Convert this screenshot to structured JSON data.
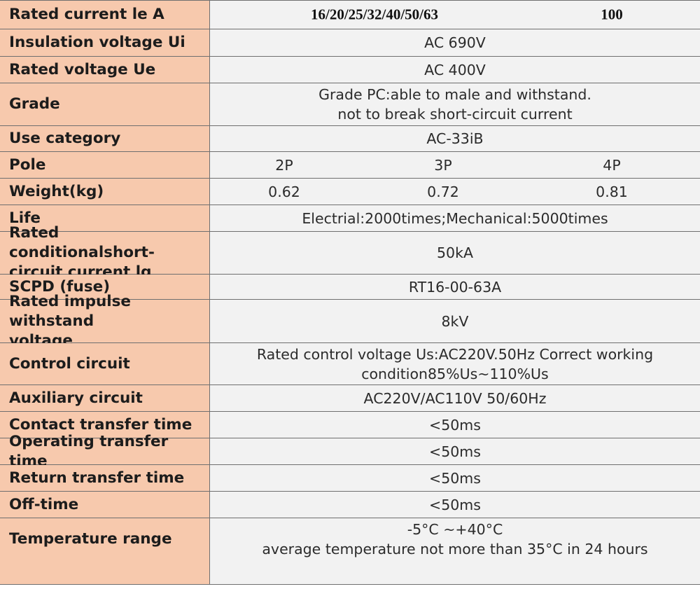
{
  "rated_current": {
    "label": "Rated current le A",
    "range_a": "16/20/25/32/40/50/63",
    "range_b": "100"
  },
  "insulation_voltage": {
    "label": "Insulation voltage Ui",
    "value": "AC 690V"
  },
  "rated_voltage": {
    "label": "Rated voltage Ue",
    "value": "AC 400V"
  },
  "grade": {
    "label": "Grade",
    "line1": "Grade PC:able to male and withstand.",
    "line2": "not to break short-circuit current"
  },
  "use_category": {
    "label": "Use category",
    "value": "AC-33iB"
  },
  "pole": {
    "label": "Pole",
    "p2": "2P",
    "p3": "3P",
    "p4": "4P"
  },
  "weight": {
    "label": "Weight(kg)",
    "w2": "0.62",
    "w3": "0.72",
    "w4": "0.81"
  },
  "life": {
    "label": "Life",
    "value": "Electrial:2000times;Mechanical:5000times"
  },
  "short_circuit": {
    "label_line1": "Rated conditionalshort-",
    "label_line2": "circuit current lq",
    "value": "50kA"
  },
  "scpd": {
    "label": "SCPD (fuse)",
    "value": "RT16-00-63A"
  },
  "impulse": {
    "label_line1": "Rated impulse withstand",
    "label_line2": "voltage",
    "value": "8kV"
  },
  "control_circuit": {
    "label": "Control circuit",
    "line1": "Rated control voltage Us:AC220V.50Hz Correct working",
    "line2": "condition85%Us~110%Us"
  },
  "auxiliary_circuit": {
    "label": "Auxiliary circuit",
    "value": "AC220V/AC110V 50/60Hz"
  },
  "contact_transfer": {
    "label": "Contact transfer time",
    "value": "<50ms"
  },
  "operating_transfer": {
    "label": "Operating transfer time",
    "value": "<50ms"
  },
  "return_transfer": {
    "label": "Return transfer time",
    "value": "<50ms"
  },
  "off_time": {
    "label": "Off-time",
    "value": "<50ms"
  },
  "temperature": {
    "label": "Temperature range",
    "line1": "-5°C ~+40°C",
    "line2": "average temperature not more than 35°C in 24 hours"
  },
  "colors": {
    "label_bg": "#f7c9ad",
    "value_bg": "#f2f2f2",
    "border": "#6f6f6f"
  }
}
